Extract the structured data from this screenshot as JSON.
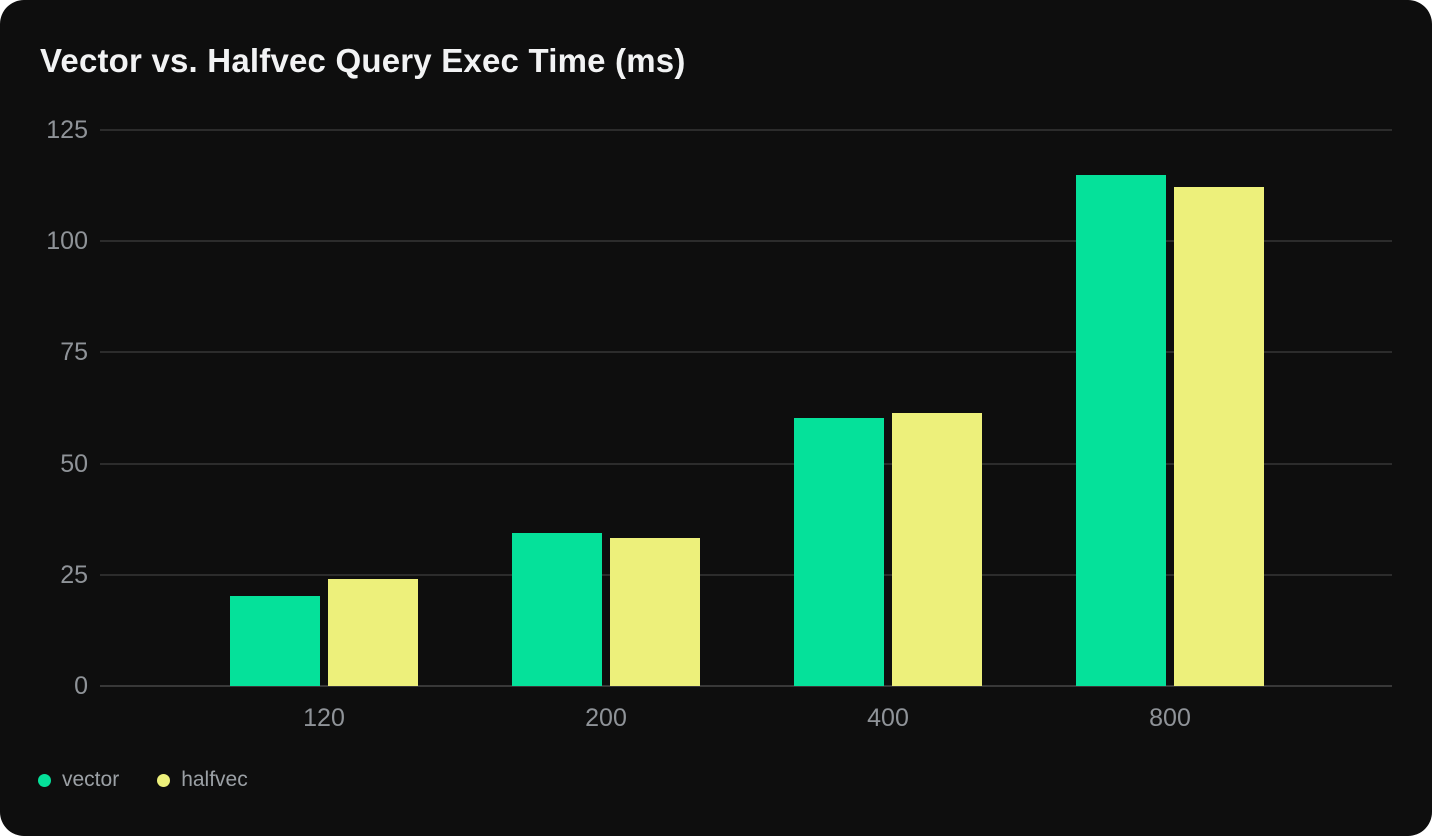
{
  "card": {
    "title": "Vector vs. Halfvec Query Exec Time (ms)"
  },
  "chart_data": {
    "type": "bar",
    "title": "Vector vs. Halfvec Query Exec Time (ms)",
    "categories": [
      "120",
      "200",
      "400",
      "800"
    ],
    "series": [
      {
        "name": "vector",
        "color": "#05e19a",
        "values": [
          20.2,
          34.4,
          60.3,
          114.8
        ]
      },
      {
        "name": "halfvec",
        "color": "#edf07b",
        "values": [
          24.0,
          33.3,
          61.4,
          112.1
        ]
      }
    ],
    "xlabel": "",
    "ylabel": "",
    "ylim": [
      0,
      125
    ],
    "yticks": [
      0,
      25,
      50,
      75,
      100,
      125
    ],
    "grid": true,
    "legend_position": "bottom-left",
    "colors": {
      "card_background": "#0e0e0e",
      "page_background": "#ffffff",
      "grid_line": "#2c2c2c",
      "axis_line": "#383838",
      "tick_label": "#8f9398",
      "title_text": "#f2f3f4",
      "legend_text": "#9ba0a5"
    }
  }
}
